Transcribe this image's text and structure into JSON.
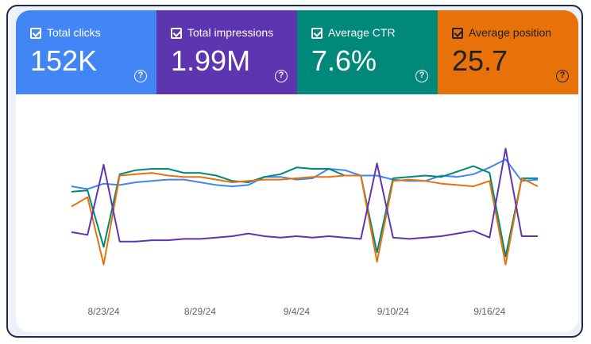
{
  "metrics": [
    {
      "label": "Total clicks",
      "value": "152K",
      "help_icon": "help-circle-icon",
      "color": "#4285F4",
      "text_color": "#ffffff"
    },
    {
      "label": "Total impressions",
      "value": "1.99M",
      "help_icon": "help-circle-icon",
      "color": "#5E35B1",
      "text_color": "#ffffff"
    },
    {
      "label": "Average CTR",
      "value": "7.6%",
      "help_icon": "help-circle-icon",
      "color": "#00897B",
      "text_color": "#ffffff"
    },
    {
      "label": "Average position",
      "value": "25.7",
      "help_icon": "help-circle-icon",
      "color": "#E8710A",
      "text_color": "#202124"
    }
  ],
  "help_glyph": "?",
  "chart_data": {
    "type": "line",
    "x": [
      "8/21/24",
      "8/22/24",
      "8/23/24",
      "8/24/24",
      "8/25/24",
      "8/26/24",
      "8/27/24",
      "8/28/24",
      "8/29/24",
      "8/30/24",
      "8/31/24",
      "9/1/24",
      "9/2/24",
      "9/3/24",
      "9/4/24",
      "9/5/24",
      "9/6/24",
      "9/7/24",
      "9/8/24",
      "9/9/24",
      "9/10/24",
      "9/11/24",
      "9/12/24",
      "9/13/24",
      "9/14/24",
      "9/15/24",
      "9/16/24",
      "9/17/24",
      "9/18/24",
      "9/19/24"
    ],
    "xticks": [
      "8/23/24",
      "8/29/24",
      "9/4/24",
      "9/10/24",
      "9/16/24"
    ],
    "ylim": [
      0,
      1
    ],
    "series": [
      {
        "color": "#4285F4",
        "values": [
          0.67,
          0.65,
          0.69,
          0.68,
          0.7,
          0.71,
          0.72,
          0.72,
          0.7,
          0.68,
          0.67,
          0.68,
          0.74,
          0.74,
          0.72,
          0.73,
          0.8,
          0.79,
          0.75,
          0.75,
          0.72,
          0.71,
          0.71,
          0.75,
          0.74,
          0.76,
          0.81,
          0.87,
          0.71,
          0.72
        ]
      },
      {
        "color": "#00897B",
        "values": [
          0.63,
          0.64,
          0.22,
          0.76,
          0.79,
          0.8,
          0.8,
          0.77,
          0.77,
          0.75,
          0.71,
          0.7,
          0.74,
          0.76,
          0.81,
          0.8,
          0.8,
          0.75,
          0.75,
          0.18,
          0.73,
          0.74,
          0.75,
          0.74,
          0.78,
          0.82,
          0.77,
          0.15,
          0.73,
          0.73
        ]
      },
      {
        "color": "#E8710A",
        "values": [
          0.52,
          0.59,
          0.09,
          0.75,
          0.76,
          0.77,
          0.75,
          0.74,
          0.74,
          0.72,
          0.7,
          0.71,
          0.72,
          0.72,
          0.73,
          0.74,
          0.74,
          0.75,
          0.75,
          0.11,
          0.71,
          0.72,
          0.71,
          0.69,
          0.68,
          0.67,
          0.71,
          0.09,
          0.73,
          0.67
        ]
      },
      {
        "color": "#5E35B1",
        "values": [
          0.33,
          0.31,
          0.83,
          0.26,
          0.26,
          0.27,
          0.27,
          0.28,
          0.28,
          0.29,
          0.3,
          0.32,
          0.3,
          0.29,
          0.3,
          0.29,
          0.3,
          0.29,
          0.28,
          0.84,
          0.29,
          0.28,
          0.29,
          0.3,
          0.32,
          0.34,
          0.29,
          0.95,
          0.3,
          0.3
        ]
      }
    ]
  }
}
